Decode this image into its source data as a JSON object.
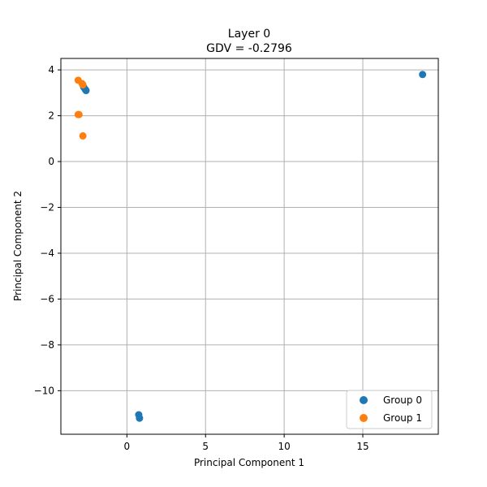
{
  "chart_data": {
    "type": "scatter",
    "title_lines": [
      "Layer 0",
      "GDV = -0.2796"
    ],
    "xlabel": "Principal Component 1",
    "ylabel": "Principal Component 2",
    "xlim": [
      -4.2,
      19.8
    ],
    "ylim": [
      -11.9,
      4.5
    ],
    "xticks": [
      0,
      5,
      10,
      15
    ],
    "xtick_labels": [
      "0",
      "5",
      "10",
      "15"
    ],
    "yticks": [
      4,
      2,
      0,
      -2,
      -4,
      -6,
      -8,
      -10
    ],
    "ytick_labels": [
      "4",
      "2",
      "0",
      "−2",
      "−4",
      "−6",
      "−8",
      "−10"
    ],
    "grid": true,
    "legend_position": "lower-right",
    "series": [
      {
        "name": "Group 0",
        "color": "#1f77b4",
        "points": [
          [
            -2.75,
            3.25
          ],
          [
            -2.65,
            3.15
          ],
          [
            -2.6,
            3.1
          ],
          [
            18.8,
            3.8
          ],
          [
            0.75,
            -11.05
          ],
          [
            0.8,
            -11.2
          ]
        ]
      },
      {
        "name": "Group 1",
        "color": "#ff7f0e",
        "points": [
          [
            -3.1,
            3.55
          ],
          [
            -2.85,
            3.4
          ],
          [
            -2.8,
            3.35
          ],
          [
            -3.1,
            2.05
          ],
          [
            -3.05,
            2.05
          ],
          [
            -2.8,
            1.12
          ]
        ]
      }
    ]
  }
}
